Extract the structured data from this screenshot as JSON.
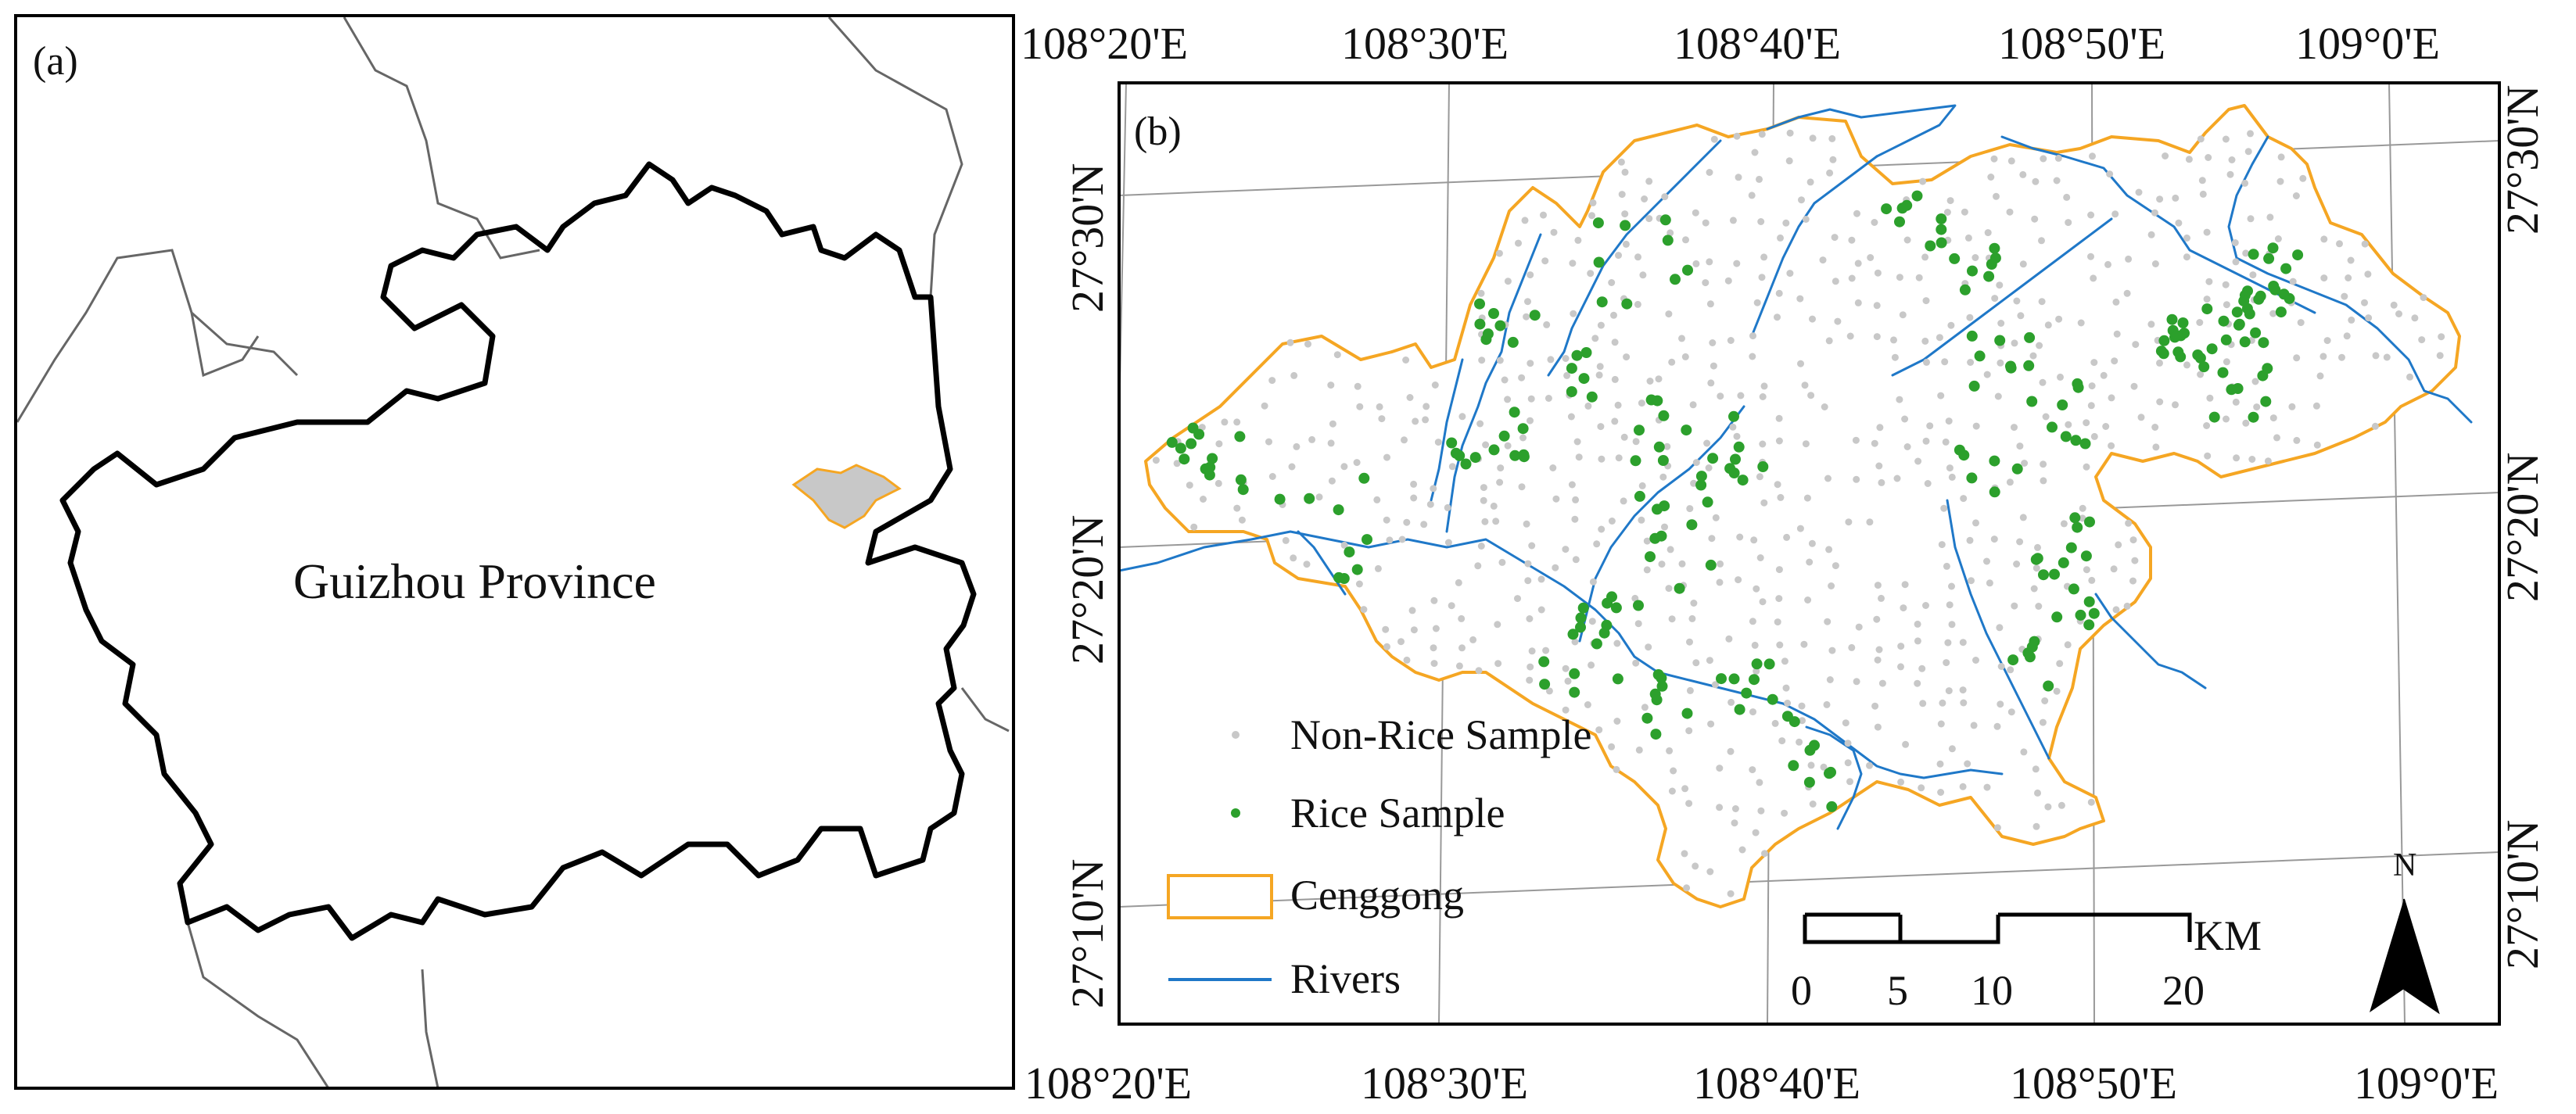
{
  "panel_a": {
    "label": "(a)",
    "province_label": "Guizhou Province"
  },
  "panel_b": {
    "label": "(b)",
    "lon_labels": [
      "108°20'E",
      "108°30'E",
      "108°40'E",
      "108°50'E",
      "109°0'E"
    ],
    "lat_labels": [
      "27°30'N",
      "27°20'N",
      "27°10'N"
    ],
    "legend": {
      "non_rice": "Non-Rice Sample",
      "rice": "Rice Sample",
      "boundary": "Cenggong",
      "rivers": "Rivers"
    },
    "scale_bar": {
      "unit": "KM",
      "ticks": [
        "0",
        "5",
        "10",
        "20"
      ]
    },
    "north_arrow": "N"
  },
  "colors": {
    "rice": "#2ca02c",
    "non_rice": "#c8c8c8",
    "boundary": "#f5a623",
    "rivers": "#1f78c8",
    "province_border": "#000000",
    "neighbor_border": "#666666",
    "county_fill": "#c8c8c8",
    "graticule": "#999999"
  }
}
